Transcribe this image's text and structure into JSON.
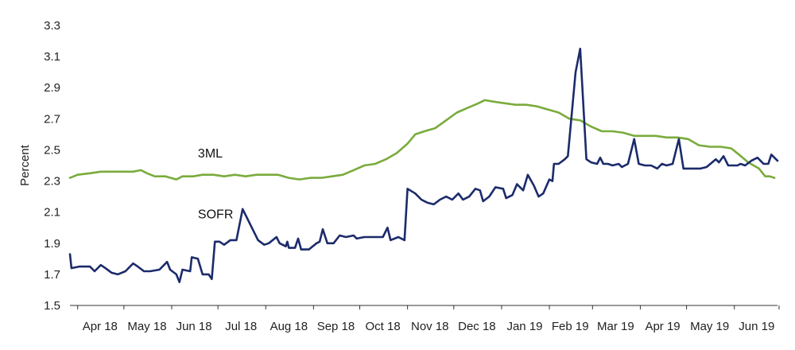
{
  "chart_data": {
    "type": "line",
    "title": "",
    "xlabel": "",
    "ylabel": "Percent",
    "ylim": [
      1.5,
      3.3
    ],
    "yticks": [
      1.5,
      1.7,
      1.9,
      2.1,
      2.3,
      2.5,
      2.7,
      2.9,
      3.1,
      3.3
    ],
    "xlim": [
      "2018-03-27",
      "2019-06-29"
    ],
    "grid": false,
    "legend": "none",
    "month_ticks": [
      {
        "label": "Apr 18",
        "start": "2018-04-01",
        "end": "2018-04-30"
      },
      {
        "label": "May 18",
        "start": "2018-05-01",
        "end": "2018-05-31"
      },
      {
        "label": "Jun 18",
        "start": "2018-06-01",
        "end": "2018-06-30"
      },
      {
        "label": "Jul 18",
        "start": "2018-07-01",
        "end": "2018-07-31"
      },
      {
        "label": "Aug 18",
        "start": "2018-08-01",
        "end": "2018-08-31"
      },
      {
        "label": "Sep 18",
        "start": "2018-09-01",
        "end": "2018-09-30"
      },
      {
        "label": "Oct 18",
        "start": "2018-10-01",
        "end": "2018-10-31"
      },
      {
        "label": "Nov 18",
        "start": "2018-11-01",
        "end": "2018-11-30"
      },
      {
        "label": "Dec 18",
        "start": "2018-12-01",
        "end": "2018-12-31"
      },
      {
        "label": "Jan 19",
        "start": "2019-01-01",
        "end": "2019-01-31"
      },
      {
        "label": "Feb 19",
        "start": "2019-02-01",
        "end": "2019-02-28"
      },
      {
        "label": "Mar 19",
        "start": "2019-03-01",
        "end": "2019-03-31"
      },
      {
        "label": "Apr 19",
        "start": "2019-04-01",
        "end": "2019-04-30"
      },
      {
        "label": "May 19",
        "start": "2019-05-01",
        "end": "2019-05-31"
      },
      {
        "label": "Jun 19",
        "start": "2019-06-01",
        "end": "2019-06-30"
      }
    ],
    "series": [
      {
        "name": "3ML",
        "color": "#7aab3c",
        "label_date": "2018-06-18",
        "label_value": 2.45,
        "points": [
          [
            "2018-03-27",
            2.32
          ],
          [
            "2018-04-01",
            2.34
          ],
          [
            "2018-04-09",
            2.35
          ],
          [
            "2018-04-16",
            2.36
          ],
          [
            "2018-04-23",
            2.36
          ],
          [
            "2018-04-30",
            2.36
          ],
          [
            "2018-05-07",
            2.36
          ],
          [
            "2018-05-12",
            2.37
          ],
          [
            "2018-05-16",
            2.35
          ],
          [
            "2018-05-21",
            2.33
          ],
          [
            "2018-05-28",
            2.33
          ],
          [
            "2018-06-04",
            2.31
          ],
          [
            "2018-06-08",
            2.33
          ],
          [
            "2018-06-15",
            2.33
          ],
          [
            "2018-06-21",
            2.34
          ],
          [
            "2018-06-28",
            2.34
          ],
          [
            "2018-07-05",
            2.33
          ],
          [
            "2018-07-12",
            2.34
          ],
          [
            "2018-07-19",
            2.33
          ],
          [
            "2018-07-26",
            2.34
          ],
          [
            "2018-08-02",
            2.34
          ],
          [
            "2018-08-09",
            2.34
          ],
          [
            "2018-08-16",
            2.32
          ],
          [
            "2018-08-23",
            2.31
          ],
          [
            "2018-08-30",
            2.32
          ],
          [
            "2018-09-06",
            2.32
          ],
          [
            "2018-09-13",
            2.33
          ],
          [
            "2018-09-20",
            2.34
          ],
          [
            "2018-09-27",
            2.37
          ],
          [
            "2018-10-04",
            2.4
          ],
          [
            "2018-10-11",
            2.41
          ],
          [
            "2018-10-18",
            2.44
          ],
          [
            "2018-10-25",
            2.48
          ],
          [
            "2018-11-01",
            2.54
          ],
          [
            "2018-11-06",
            2.6
          ],
          [
            "2018-11-12",
            2.62
          ],
          [
            "2018-11-19",
            2.64
          ],
          [
            "2018-11-26",
            2.69
          ],
          [
            "2018-12-03",
            2.74
          ],
          [
            "2018-12-10",
            2.77
          ],
          [
            "2018-12-17",
            2.8
          ],
          [
            "2018-12-21",
            2.82
          ],
          [
            "2018-12-27",
            2.81
          ],
          [
            "2019-01-03",
            2.8
          ],
          [
            "2019-01-10",
            2.79
          ],
          [
            "2019-01-17",
            2.79
          ],
          [
            "2019-01-24",
            2.78
          ],
          [
            "2019-01-31",
            2.76
          ],
          [
            "2019-02-07",
            2.74
          ],
          [
            "2019-02-14",
            2.7
          ],
          [
            "2019-02-21",
            2.69
          ],
          [
            "2019-02-28",
            2.65
          ],
          [
            "2019-03-07",
            2.62
          ],
          [
            "2019-03-14",
            2.62
          ],
          [
            "2019-03-21",
            2.61
          ],
          [
            "2019-03-28",
            2.59
          ],
          [
            "2019-04-04",
            2.59
          ],
          [
            "2019-04-11",
            2.59
          ],
          [
            "2019-04-18",
            2.58
          ],
          [
            "2019-04-25",
            2.58
          ],
          [
            "2019-05-02",
            2.57
          ],
          [
            "2019-05-09",
            2.53
          ],
          [
            "2019-05-16",
            2.52
          ],
          [
            "2019-05-23",
            2.52
          ],
          [
            "2019-05-30",
            2.51
          ],
          [
            "2019-06-04",
            2.47
          ],
          [
            "2019-06-10",
            2.42
          ],
          [
            "2019-06-17",
            2.38
          ],
          [
            "2019-06-21",
            2.33
          ],
          [
            "2019-06-24",
            2.33
          ],
          [
            "2019-06-27",
            2.32
          ]
        ]
      },
      {
        "name": "SOFR",
        "color": "#1b2b6b",
        "label_date": "2018-06-18",
        "label_value": 2.06,
        "points": [
          [
            "2018-03-27",
            1.83
          ],
          [
            "2018-03-28",
            1.74
          ],
          [
            "2018-04-02",
            1.75
          ],
          [
            "2018-04-09",
            1.75
          ],
          [
            "2018-04-12",
            1.72
          ],
          [
            "2018-04-16",
            1.76
          ],
          [
            "2018-04-19",
            1.74
          ],
          [
            "2018-04-23",
            1.71
          ],
          [
            "2018-04-27",
            1.7
          ],
          [
            "2018-05-02",
            1.72
          ],
          [
            "2018-05-07",
            1.77
          ],
          [
            "2018-05-10",
            1.75
          ],
          [
            "2018-05-14",
            1.72
          ],
          [
            "2018-05-18",
            1.72
          ],
          [
            "2018-05-24",
            1.73
          ],
          [
            "2018-05-29",
            1.78
          ],
          [
            "2018-05-31",
            1.73
          ],
          [
            "2018-06-04",
            1.7
          ],
          [
            "2018-06-06",
            1.65
          ],
          [
            "2018-06-08",
            1.73
          ],
          [
            "2018-06-13",
            1.72
          ],
          [
            "2018-06-14",
            1.81
          ],
          [
            "2018-06-18",
            1.8
          ],
          [
            "2018-06-21",
            1.7
          ],
          [
            "2018-06-25",
            1.7
          ],
          [
            "2018-06-27",
            1.67
          ],
          [
            "2018-06-29",
            1.91
          ],
          [
            "2018-07-02",
            1.91
          ],
          [
            "2018-07-05",
            1.89
          ],
          [
            "2018-07-09",
            1.92
          ],
          [
            "2018-07-13",
            1.92
          ],
          [
            "2018-07-17",
            2.12
          ],
          [
            "2018-07-20",
            2.06
          ],
          [
            "2018-07-24",
            1.98
          ],
          [
            "2018-07-27",
            1.92
          ],
          [
            "2018-07-31",
            1.89
          ],
          [
            "2018-08-03",
            1.9
          ],
          [
            "2018-08-08",
            1.94
          ],
          [
            "2018-08-10",
            1.9
          ],
          [
            "2018-08-14",
            1.88
          ],
          [
            "2018-08-15",
            1.91
          ],
          [
            "2018-08-16",
            1.87
          ],
          [
            "2018-08-20",
            1.87
          ],
          [
            "2018-08-22",
            1.93
          ],
          [
            "2018-08-24",
            1.86
          ],
          [
            "2018-08-29",
            1.86
          ],
          [
            "2018-09-03",
            1.9
          ],
          [
            "2018-09-05",
            1.91
          ],
          [
            "2018-09-07",
            1.99
          ],
          [
            "2018-09-10",
            1.9
          ],
          [
            "2018-09-14",
            1.9
          ],
          [
            "2018-09-18",
            1.95
          ],
          [
            "2018-09-22",
            1.94
          ],
          [
            "2018-09-27",
            1.95
          ],
          [
            "2018-09-29",
            1.93
          ],
          [
            "2018-10-04",
            1.94
          ],
          [
            "2018-10-08",
            1.94
          ],
          [
            "2018-10-12",
            1.94
          ],
          [
            "2018-10-16",
            1.94
          ],
          [
            "2018-10-19",
            2.0
          ],
          [
            "2018-10-21",
            1.92
          ],
          [
            "2018-10-26",
            1.94
          ],
          [
            "2018-10-30",
            1.92
          ],
          [
            "2018-11-01",
            2.25
          ],
          [
            "2018-11-06",
            2.22
          ],
          [
            "2018-11-10",
            2.18
          ],
          [
            "2018-11-14",
            2.16
          ],
          [
            "2018-11-18",
            2.15
          ],
          [
            "2018-11-22",
            2.18
          ],
          [
            "2018-11-26",
            2.2
          ],
          [
            "2018-11-30",
            2.18
          ],
          [
            "2018-12-04",
            2.22
          ],
          [
            "2018-12-07",
            2.18
          ],
          [
            "2018-12-11",
            2.2
          ],
          [
            "2018-12-15",
            2.25
          ],
          [
            "2018-12-18",
            2.24
          ],
          [
            "2018-12-20",
            2.17
          ],
          [
            "2018-12-24",
            2.2
          ],
          [
            "2018-12-28",
            2.26
          ],
          [
            "2019-01-02",
            2.25
          ],
          [
            "2019-01-04",
            2.19
          ],
          [
            "2019-01-08",
            2.21
          ],
          [
            "2019-01-11",
            2.28
          ],
          [
            "2019-01-15",
            2.24
          ],
          [
            "2019-01-18",
            2.34
          ],
          [
            "2019-01-22",
            2.27
          ],
          [
            "2019-01-25",
            2.2
          ],
          [
            "2019-01-28",
            2.22
          ],
          [
            "2019-02-01",
            2.31
          ],
          [
            "2019-02-03",
            2.3
          ],
          [
            "2019-02-04",
            2.41
          ],
          [
            "2019-02-07",
            2.41
          ],
          [
            "2019-02-11",
            2.44
          ],
          [
            "2019-02-13",
            2.46
          ],
          [
            "2019-02-18",
            3.0
          ],
          [
            "2019-02-21",
            3.15
          ],
          [
            "2019-02-25",
            2.44
          ],
          [
            "2019-02-28",
            2.42
          ],
          [
            "2019-03-04",
            2.41
          ],
          [
            "2019-03-06",
            2.45
          ],
          [
            "2019-03-08",
            2.41
          ],
          [
            "2019-03-11",
            2.41
          ],
          [
            "2019-03-14",
            2.4
          ],
          [
            "2019-03-18",
            2.41
          ],
          [
            "2019-03-20",
            2.39
          ],
          [
            "2019-03-24",
            2.41
          ],
          [
            "2019-03-28",
            2.57
          ],
          [
            "2019-03-31",
            2.41
          ],
          [
            "2019-04-04",
            2.4
          ],
          [
            "2019-04-08",
            2.4
          ],
          [
            "2019-04-12",
            2.38
          ],
          [
            "2019-04-15",
            2.41
          ],
          [
            "2019-04-18",
            2.4
          ],
          [
            "2019-04-22",
            2.41
          ],
          [
            "2019-04-26",
            2.57
          ],
          [
            "2019-04-29",
            2.38
          ],
          [
            "2019-05-06",
            2.38
          ],
          [
            "2019-05-10",
            2.38
          ],
          [
            "2019-05-14",
            2.39
          ],
          [
            "2019-05-20",
            2.44
          ],
          [
            "2019-05-22",
            2.42
          ],
          [
            "2019-05-25",
            2.46
          ],
          [
            "2019-05-28",
            2.4
          ],
          [
            "2019-06-01",
            2.4
          ],
          [
            "2019-06-03",
            2.4
          ],
          [
            "2019-06-05",
            2.41
          ],
          [
            "2019-06-08",
            2.4
          ],
          [
            "2019-06-12",
            2.43
          ],
          [
            "2019-06-16",
            2.45
          ],
          [
            "2019-06-20",
            2.41
          ],
          [
            "2019-06-23",
            2.41
          ],
          [
            "2019-06-25",
            2.47
          ],
          [
            "2019-06-27",
            2.45
          ],
          [
            "2019-06-28",
            2.44
          ],
          [
            "2019-06-29",
            2.43
          ]
        ]
      }
    ]
  }
}
